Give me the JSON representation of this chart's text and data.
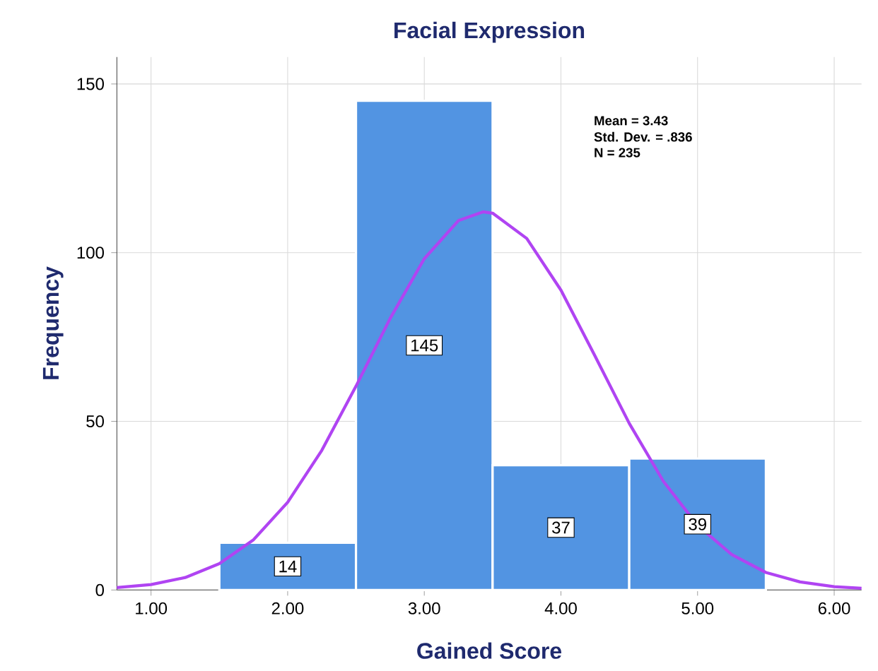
{
  "chart_data": {
    "type": "histogram",
    "title": "Facial Expression",
    "xlabel": "Gained Score",
    "ylabel": "Frequency",
    "bins": [
      1.5,
      2.5,
      3.5,
      4.5,
      5.5
    ],
    "series": [
      {
        "color": "#5294e2",
        "values": [
          14,
          145,
          37,
          39
        ],
        "value_labels": [
          "14",
          "145",
          "37",
          "39"
        ]
      },
      {
        "type": "line",
        "color": "#b044f2",
        "x": [
          0.75,
          1.0,
          1.25,
          1.5,
          1.75,
          2.0,
          2.25,
          2.5,
          2.75,
          3.0,
          3.25,
          3.43,
          3.5,
          3.75,
          4.0,
          4.25,
          4.5,
          4.75,
          5.0,
          5.25,
          5.5,
          5.75,
          6.0,
          6.2
        ],
        "values": [
          0.7,
          1.6,
          3.7,
          7.8,
          14.9,
          26.0,
          41.4,
          60.4,
          80.5,
          98.2,
          109.5,
          112.1,
          111.7,
          104.2,
          88.9,
          69.3,
          49.4,
          32.2,
          19.2,
          10.5,
          5.2,
          2.4,
          1.0,
          0.5
        ]
      }
    ],
    "annotations": [
      "Mean = 3.43",
      "Std. Dev. = .836",
      "N = 235"
    ],
    "xlim": [
      0.75,
      6.2
    ],
    "ylim": [
      0,
      158
    ],
    "xticks": [
      {
        "value": 1,
        "label": "1.00"
      },
      {
        "value": 2,
        "label": "2.00"
      },
      {
        "value": 3,
        "label": "3.00"
      },
      {
        "value": 4,
        "label": "4.00"
      },
      {
        "value": 5,
        "label": "5.00"
      },
      {
        "value": 6,
        "label": "6.00"
      }
    ],
    "yticks": [
      0,
      50,
      100,
      150
    ],
    "grid": true,
    "marker": "none",
    "line_style": "solid"
  }
}
